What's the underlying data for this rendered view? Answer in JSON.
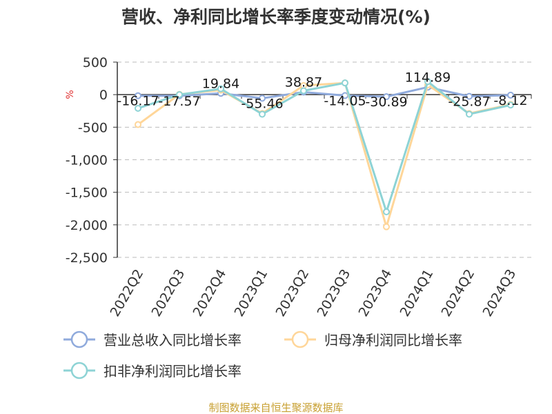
{
  "title": "营收、净利同比增长率季度变动情况(%)",
  "unit": "%",
  "source": "制图数据来自恒生聚源数据库",
  "colors": {
    "revenue": "#8faadc",
    "net_profit": "#ffd699",
    "deducted_profit": "#8dd3d5",
    "grid": "#bbbbbb",
    "axis": "#333333",
    "unit": "#e03030",
    "source": "#c8a032"
  },
  "chart_data": {
    "type": "line",
    "title": "营收、净利同比增长率季度变动情况(%)",
    "ylabel": "%",
    "xlabel": "",
    "categories": [
      "2022Q2",
      "2022Q3",
      "2022Q4",
      "2023Q1",
      "2023Q2",
      "2023Q3",
      "2023Q4",
      "2024Q1",
      "2024Q2",
      "2024Q3"
    ],
    "ylim": [
      -2500,
      500
    ],
    "yticks": [
      500,
      0,
      -500,
      -1000,
      -1500,
      -2000,
      -2500
    ],
    "ytick_labels": [
      "500",
      "0",
      "-500",
      "-1,000",
      "-1,500",
      "-2,000",
      "-2,500"
    ],
    "grid": true,
    "legend_position": "bottom",
    "series": [
      {
        "name": "营业总收入同比增长率",
        "key": "revenue",
        "values": [
          -16.17,
          -17.57,
          19.84,
          -55.46,
          38.87,
          -14.05,
          -30.89,
          114.89,
          -25.87,
          -8.12
        ],
        "labels": [
          "-16.17",
          "-17.57",
          "19.84",
          "-55.46",
          "38.87",
          "-14.05",
          "-30.89",
          "114.89",
          "-25.87",
          "-8.12"
        ]
      },
      {
        "name": "归母净利润同比增长率",
        "key": "net_profit",
        "values": [
          -460,
          5,
          70,
          -290,
          140,
          180,
          -2030,
          150,
          -290,
          -150
        ]
      },
      {
        "name": "扣非净利润同比增长率",
        "key": "deducted_profit",
        "values": [
          -210,
          0,
          90,
          -300,
          60,
          180,
          -1800,
          200,
          -300,
          -160
        ]
      }
    ]
  }
}
